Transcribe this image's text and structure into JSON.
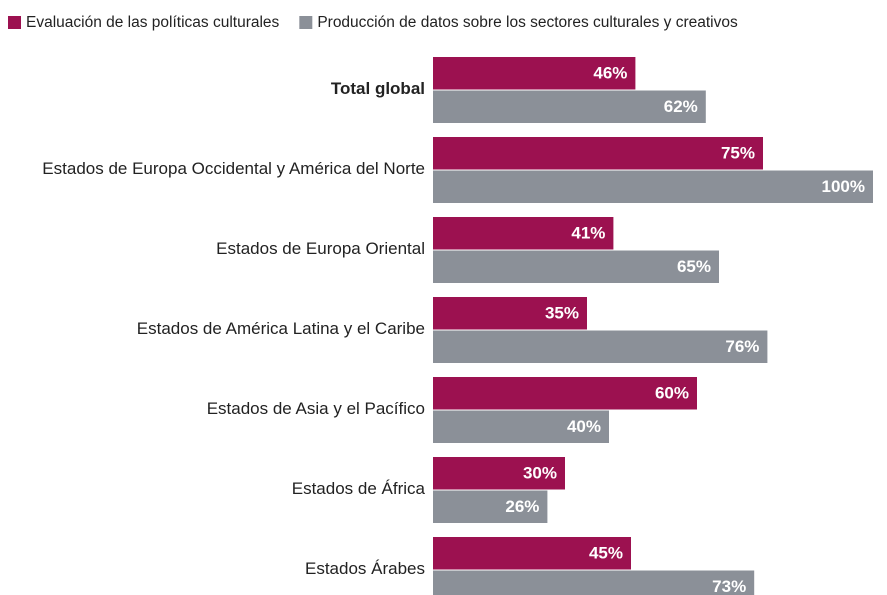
{
  "chart_data": {
    "type": "bar",
    "orientation": "horizontal",
    "categories": [
      "Total global",
      "Estados de Europa Occidental y América del Norte",
      "Estados de Europa Oriental",
      "Estados de América Latina y el Caribe",
      "Estados de Asia y el Pacífico",
      "Estados de África",
      "Estados Árabes"
    ],
    "series": [
      {
        "name": "Evaluación de las políticas culturales",
        "color": "#9c1150",
        "values": [
          46,
          75,
          41,
          35,
          60,
          30,
          45
        ],
        "value_labels": [
          "46%",
          "75%",
          "41%",
          "35%",
          "60%",
          "30%",
          "45%"
        ]
      },
      {
        "name": "Producción de datos sobre los sectores culturales y creativos",
        "color": "#8b9098",
        "values": [
          62,
          100,
          65,
          76,
          40,
          26,
          73
        ],
        "value_labels": [
          "62%",
          "100%",
          "65%",
          "76%",
          "40%",
          "26%",
          "73%"
        ]
      }
    ]
  }
}
